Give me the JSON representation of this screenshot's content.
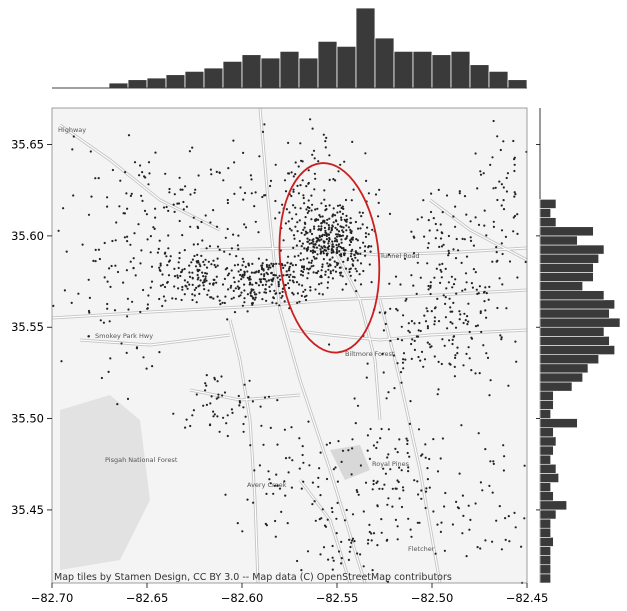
{
  "chart_data": {
    "type": "scatter",
    "title": "",
    "xlabel": "",
    "ylabel": "",
    "xlim": [
      -82.7,
      -82.45
    ],
    "ylim": [
      35.41,
      35.67
    ],
    "x_ticks": [
      -82.7,
      -82.65,
      -82.6,
      -82.55,
      -82.5,
      -82.45
    ],
    "x_tick_labels": [
      "−82.70",
      "−82.65",
      "−82.60",
      "−82.55",
      "−82.50",
      "−82.45"
    ],
    "y_ticks": [
      35.45,
      35.5,
      35.55,
      35.6,
      35.65
    ],
    "y_tick_labels": [
      "35.45",
      "35.50",
      "35.55",
      "35.60",
      "35.65"
    ],
    "attribution": "Map tiles by Stamen Design, CC BY 3.0 -- Map data (C) OpenStreetMap contributors",
    "map_labels": [
      "Smokey Park Hwy",
      "Biltmore Forest",
      "Pisgah National Forest",
      "Royal Pines",
      "Avery Creek",
      "Fletcher",
      "Tunnel Road",
      "Highway"
    ],
    "marginal_x": {
      "bin_edges_start": -82.67,
      "bin_width": 0.01,
      "counts": [
        3,
        5,
        6,
        8,
        10,
        12,
        16,
        20,
        18,
        22,
        18,
        28,
        25,
        48,
        30,
        22,
        22,
        20,
        22,
        14,
        10,
        5
      ]
    },
    "marginal_y": {
      "bin_edges_start": 35.41,
      "bin_width": 0.005,
      "counts": [
        4,
        4,
        4,
        4,
        5,
        4,
        4,
        6,
        10,
        5,
        4,
        7,
        6,
        4,
        5,
        6,
        5,
        14,
        4,
        5,
        5,
        12,
        16,
        18,
        22,
        28,
        26,
        24,
        30,
        26,
        28,
        24,
        16,
        20,
        20,
        22,
        24,
        14,
        20,
        6,
        4,
        6,
        0,
        0,
        0,
        0,
        0,
        0,
        0,
        0,
        0,
        0
      ],
      "max_count": 30
    },
    "annotation": {
      "shape": "ellipse",
      "color": "#cc1f1f",
      "center": [
        -82.554,
        35.588
      ],
      "rx_deg": 0.026,
      "ry_deg": 0.052,
      "rotation_deg": 5
    },
    "point_color": "#222222",
    "bar_color": "#3a3a3a"
  }
}
